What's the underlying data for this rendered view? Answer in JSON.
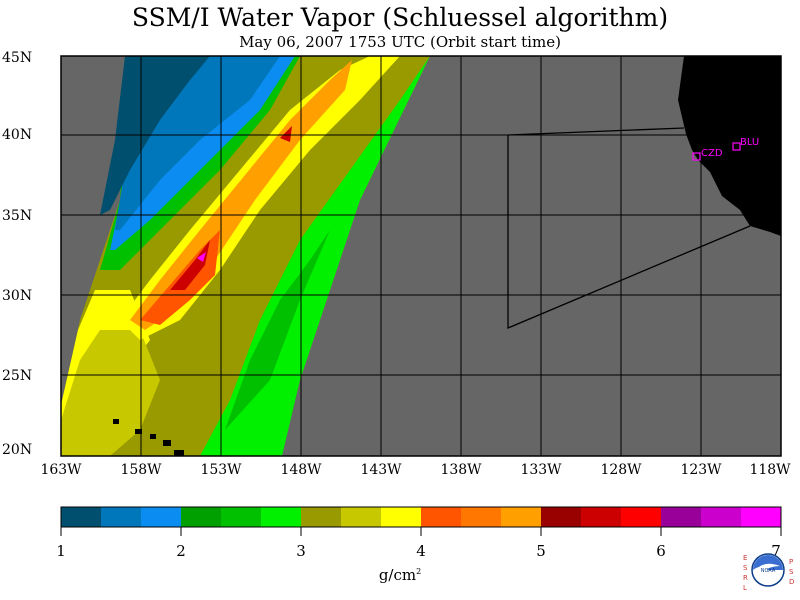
{
  "title": "SSM/I Water Vapor (Schluessel algorithm)",
  "subtitle": "May 06, 2007  1753 UTC  (Orbit start time)",
  "map": {
    "lat_ticks": [
      "45N",
      "40N",
      "35N",
      "30N",
      "25N",
      "20N"
    ],
    "lon_ticks": [
      "163W",
      "158W",
      "153W",
      "148W",
      "143W",
      "138W",
      "133W",
      "128W",
      "123W",
      "118W"
    ],
    "stations": [
      {
        "id": "CZD",
        "label": "CZD"
      },
      {
        "id": "BLU",
        "label": "BLU"
      }
    ],
    "colors": {
      "no_data": "#666666",
      "land": "#000000",
      "station_marker": "#ff00ff",
      "grid": "#000000"
    }
  },
  "colorbar": {
    "units": "g/cm",
    "units_sup": "2",
    "tick_labels": [
      "1",
      "2",
      "3",
      "4",
      "5",
      "6",
      "7"
    ],
    "min": 1,
    "max": 7,
    "colors": [
      "#004f6e",
      "#0077bb",
      "#0b8cf0",
      "#00a000",
      "#00c000",
      "#00f000",
      "#999900",
      "#c8c800",
      "#ffff00",
      "#ff5500",
      "#ff7700",
      "#ffa000",
      "#990000",
      "#cc0000",
      "#ff0000",
      "#990099",
      "#cc00cc",
      "#ff00ff"
    ]
  },
  "logo": {
    "left_letters": "ESRL",
    "right_letters": "PSD",
    "badge": "NOAA"
  }
}
